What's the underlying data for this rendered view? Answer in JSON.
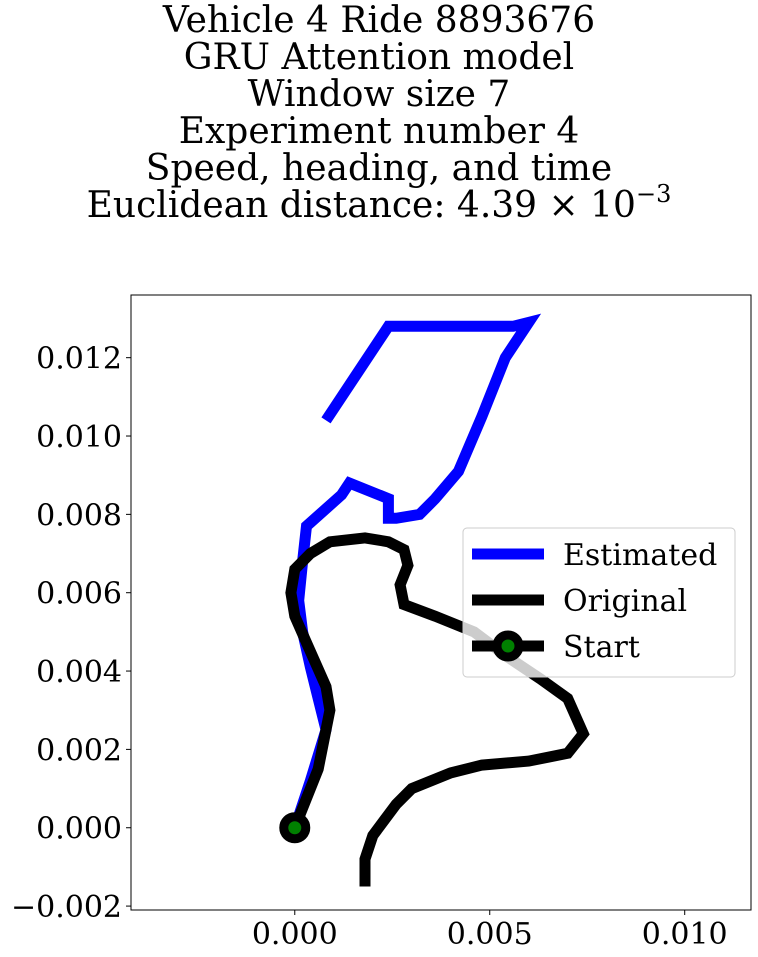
{
  "title": {
    "line1": "Vehicle 4 Ride 8893676",
    "line2": "GRU Attention model",
    "line3": "Window size 7",
    "line4": "Experiment number 4",
    "line5": "Speed, heading, and time",
    "line6_prefix": "Euclidean distance: 4.39 × 10",
    "line6_exponent": "−3"
  },
  "chart_data": {
    "type": "line",
    "xlim": [
      -0.0042,
      0.0117
    ],
    "ylim": [
      -0.0021,
      0.0136
    ],
    "xticks": [
      0.0,
      0.005,
      0.01
    ],
    "xtick_labels": [
      "0.000",
      "0.005",
      "0.010"
    ],
    "yticks": [
      -0.002,
      0.0,
      0.002,
      0.004,
      0.006,
      0.008,
      0.01,
      0.012
    ],
    "ytick_labels": [
      "−0.002",
      "0.000",
      "0.002",
      "0.004",
      "0.006",
      "0.008",
      "0.010",
      "0.012"
    ],
    "grid": false,
    "legend_position": "right",
    "series": [
      {
        "name": "Estimated",
        "color": "#0000ff",
        "x": [
          0.0,
          0.0004,
          0.0008,
          0.0006,
          0.0004,
          0.0002,
          0.0001,
          0.0002,
          0.0003,
          0.0012,
          0.0014,
          0.0024,
          0.0024,
          0.0026,
          0.0032,
          0.0036,
          0.0042,
          0.0048,
          0.0054,
          0.006,
          0.0056,
          0.0048,
          0.0024,
          0.0016,
          0.0008
        ],
        "y": [
          0.0,
          0.0012,
          0.0025,
          0.0033,
          0.0041,
          0.005,
          0.0058,
          0.0068,
          0.0077,
          0.0085,
          0.0088,
          0.0084,
          0.0079,
          0.0079,
          0.008,
          0.0084,
          0.0091,
          0.0105,
          0.012,
          0.0129,
          0.0128,
          0.0128,
          0.0128,
          0.0116,
          0.0104
        ]
      },
      {
        "name": "Original",
        "color": "#000000",
        "x": [
          0.0,
          0.0006,
          0.0009,
          0.0008,
          0.0004,
          0.0,
          -0.0001,
          0.0,
          0.0004,
          0.0009,
          0.0018,
          0.0024,
          0.0028,
          0.0029,
          0.0027,
          0.0028,
          0.0036,
          0.0046,
          0.0054,
          0.0063,
          0.007,
          0.0074,
          0.007,
          0.006,
          0.0048,
          0.004,
          0.003,
          0.0026,
          0.002,
          0.0018,
          0.0018
        ],
        "y": [
          0.0,
          0.0015,
          0.003,
          0.0036,
          0.0045,
          0.0054,
          0.006,
          0.0066,
          0.007,
          0.0073,
          0.0074,
          0.0073,
          0.0071,
          0.0067,
          0.0062,
          0.0057,
          0.0054,
          0.005,
          0.0044,
          0.0038,
          0.0033,
          0.0024,
          0.0019,
          0.0017,
          0.0016,
          0.0014,
          0.001,
          0.0006,
          -0.0002,
          -0.0008,
          -0.0015
        ]
      }
    ],
    "start_marker": {
      "name": "Start",
      "x": 0.0,
      "y": 0.0,
      "face_color": "#008000",
      "edge_color": "#000000"
    }
  }
}
